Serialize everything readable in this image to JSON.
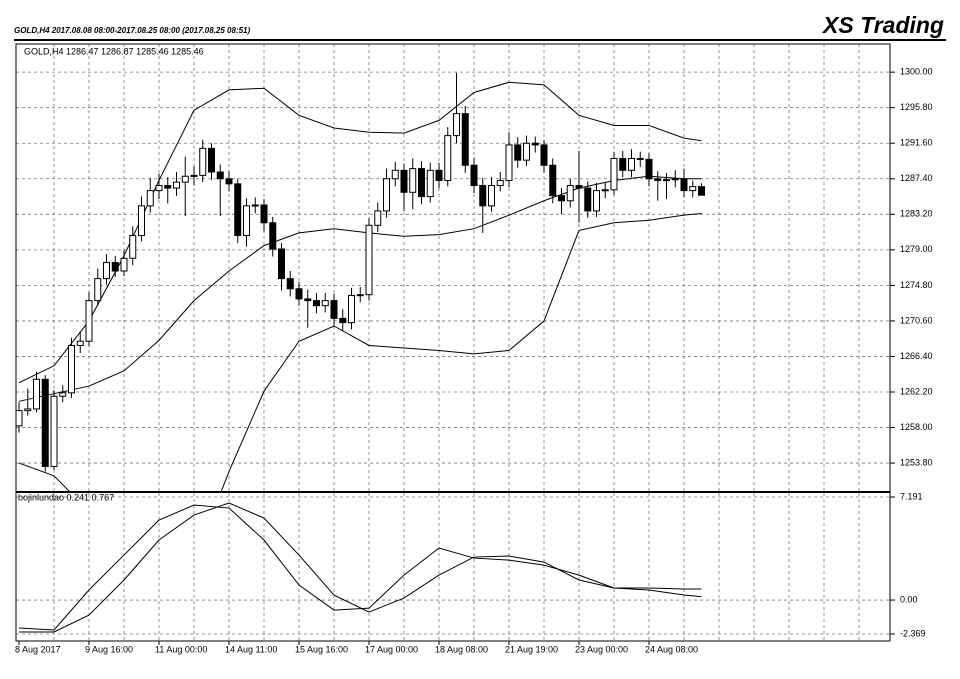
{
  "header": {
    "title": "GOLD,H4  2017.08.08 08:00-2017.08.25 08:00  (2017.08.25 08:51)",
    "brand": "XS Trading"
  },
  "chart_data": [
    {
      "type": "candlestick",
      "label": "GOLD,H4  1286.47 1286.87 1285.46 1285.46",
      "categories": [
        "8 Aug 2017",
        null,
        null,
        null,
        null,
        null,
        null,
        null,
        "9 Aug 16:00",
        null,
        null,
        null,
        null,
        null,
        null,
        null,
        "11 Aug 00:00",
        null,
        null,
        null,
        null,
        null,
        null,
        null,
        "14 Aug 11:00",
        null,
        null,
        null,
        null,
        null,
        null,
        null,
        "15 Aug 16:00",
        null,
        null,
        null,
        null,
        null,
        null,
        null,
        "17 Aug 00:00",
        null,
        null,
        null,
        null,
        null,
        null,
        null,
        "18 Aug 08:00",
        null,
        null,
        null,
        null,
        null,
        null,
        null,
        "21 Aug 19:00",
        null,
        null,
        null,
        null,
        null,
        null,
        null,
        "23 Aug 00:00",
        null,
        null,
        null,
        null,
        null,
        null,
        null,
        "24 Aug 08:00",
        null,
        null,
        null,
        null,
        null,
        null
      ],
      "open": [
        1258.2,
        1260.0,
        1260.2,
        1263.7,
        1253.4,
        1261.7,
        1262.1,
        1267.7,
        1268.2,
        1273.0,
        1275.6,
        1277.5,
        1276.5,
        1278.0,
        1280.7,
        1284.2,
        1286.0,
        1286.6,
        1286.3,
        1287.0,
        1287.7,
        1287.8,
        1291.0,
        1288.2,
        1287.4,
        1286.8,
        1280.7,
        1284.2,
        1284.3,
        1282.2,
        1279.1,
        1275.6,
        1274.4,
        1273.2,
        1273.0,
        1272.4,
        1273.0,
        1270.9,
        1270.4,
        1273.6,
        1273.7,
        1281.9,
        1283.6,
        1287.4,
        1288.4,
        1285.8,
        1288.6,
        1285.3,
        1288.4,
        1287.2,
        1292.5,
        1295.1,
        1289.0,
        1286.6,
        1284.2,
        1286.6,
        1287.2,
        1291.4,
        1289.6,
        1291.6,
        1291.4,
        1289.0,
        1285.4,
        1284.8,
        1286.6,
        1286.3,
        1283.6,
        1286.0,
        1286.1,
        1289.8,
        1288.4,
        1289.8,
        1289.7,
        1287.4,
        1287.2,
        1287.3,
        1287.4,
        1286.0,
        1286.47
      ],
      "high": [
        1261.0,
        1262.6,
        1264.6,
        1264.2,
        1262.4,
        1263.0,
        1268.6,
        1269.3,
        1274.0,
        1276.8,
        1278.5,
        1278.3,
        1279.0,
        1281.8,
        1285.3,
        1287.5,
        1288.0,
        1287.6,
        1288.2,
        1290.0,
        1288.9,
        1292.0,
        1291.6,
        1289.1,
        1288.3,
        1287.4,
        1285.1,
        1285.2,
        1285.0,
        1282.9,
        1279.8,
        1276.5,
        1275.2,
        1274.3,
        1273.9,
        1273.9,
        1273.8,
        1272.0,
        1274.5,
        1274.6,
        1282.8,
        1284.6,
        1288.6,
        1289.4,
        1289.2,
        1289.8,
        1289.5,
        1289.3,
        1289.3,
        1293.5,
        1299.9,
        1296.0,
        1289.9,
        1287.5,
        1287.6,
        1288.2,
        1292.9,
        1292.3,
        1292.5,
        1292.4,
        1292.0,
        1289.8,
        1286.3,
        1287.4,
        1290.7,
        1287.1,
        1286.9,
        1287.0,
        1290.6,
        1290.7,
        1290.9,
        1290.6,
        1290.4,
        1288.3,
        1288.1,
        1288.4,
        1288.6,
        1287.2,
        1286.87
      ],
      "low": [
        1257.4,
        1259.4,
        1259.8,
        1252.8,
        1253.0,
        1261.0,
        1261.5,
        1266.8,
        1267.6,
        1272.4,
        1274.9,
        1275.8,
        1275.9,
        1277.2,
        1280.0,
        1283.4,
        1285.0,
        1284.5,
        1285.4,
        1283.0,
        1286.6,
        1287.0,
        1287.3,
        1283.0,
        1285.9,
        1279.8,
        1279.4,
        1283.3,
        1281.2,
        1278.2,
        1274.2,
        1273.5,
        1272.4,
        1269.8,
        1271.5,
        1271.6,
        1270.0,
        1269.4,
        1269.6,
        1272.8,
        1273.0,
        1281.1,
        1282.8,
        1286.5,
        1283.6,
        1283.8,
        1284.4,
        1284.6,
        1286.3,
        1286.5,
        1291.6,
        1288.1,
        1285.7,
        1281.0,
        1283.5,
        1285.9,
        1286.4,
        1288.7,
        1288.9,
        1290.5,
        1288.1,
        1284.5,
        1283.2,
        1284.0,
        1282.2,
        1282.8,
        1282.9,
        1285.1,
        1285.5,
        1287.6,
        1287.6,
        1288.8,
        1286.5,
        1284.8,
        1285.0,
        1286.4,
        1285.2,
        1285.2,
        1285.46
      ],
      "close": [
        1260.0,
        1260.2,
        1263.7,
        1253.4,
        1261.7,
        1262.1,
        1267.7,
        1268.2,
        1273.0,
        1275.6,
        1277.5,
        1276.5,
        1278.0,
        1280.7,
        1284.2,
        1286.0,
        1286.6,
        1286.3,
        1287.0,
        1287.7,
        1287.8,
        1291.0,
        1288.2,
        1287.4,
        1286.8,
        1280.7,
        1284.2,
        1284.3,
        1282.2,
        1279.1,
        1275.6,
        1274.4,
        1273.2,
        1273.0,
        1272.4,
        1273.0,
        1270.9,
        1270.4,
        1273.6,
        1273.7,
        1281.9,
        1283.6,
        1287.4,
        1288.4,
        1285.8,
        1288.6,
        1285.3,
        1288.4,
        1287.2,
        1292.5,
        1295.1,
        1289.0,
        1286.6,
        1284.2,
        1286.6,
        1287.2,
        1291.4,
        1289.6,
        1291.6,
        1291.4,
        1289.0,
        1285.4,
        1284.8,
        1286.6,
        1286.3,
        1283.6,
        1286.0,
        1286.1,
        1289.8,
        1288.4,
        1289.8,
        1289.7,
        1287.4,
        1287.2,
        1287.3,
        1287.4,
        1286.0,
        1286.47,
        1285.46
      ],
      "up_color": "#ffffff",
      "down_color": "#000000",
      "overlays": [
        {
          "color": "#000000",
          "x": [
            0,
            4,
            8,
            12,
            16,
            20,
            24,
            28,
            32,
            36,
            40,
            44,
            48,
            52,
            56,
            60,
            64,
            68,
            72,
            76,
            78
          ],
          "values": [
            1263.3,
            1265.3,
            1270.6,
            1278.3,
            1287.2,
            1295.5,
            1297.9,
            1298.1,
            1294.9,
            1293.4,
            1292.9,
            1292.8,
            1294.3,
            1297.6,
            1298.8,
            1298.5,
            1294.9,
            1293.7,
            1293.7,
            1292.2,
            1291.9
          ]
        },
        {
          "color": "#000000",
          "x": [
            0,
            4,
            8,
            12,
            16,
            20,
            24,
            28,
            32,
            36,
            40,
            44,
            48,
            52,
            56,
            60,
            64,
            68,
            72,
            76,
            78
          ],
          "values": [
            1261.1,
            1262.0,
            1262.9,
            1264.7,
            1268.3,
            1273.0,
            1276.5,
            1279.5,
            1281.0,
            1281.5,
            1281.0,
            1280.6,
            1280.8,
            1281.5,
            1283.1,
            1284.8,
            1286.3,
            1287.2,
            1287.7,
            1287.4,
            1287.4
          ]
        },
        {
          "color": "#000000",
          "x": [
            0,
            4,
            8,
            12,
            16,
            20,
            24,
            28,
            32,
            36,
            40,
            44,
            48,
            52,
            56,
            60,
            64,
            68,
            72,
            76,
            78
          ],
          "values": [
            1253.8,
            1252.3,
            1248.1,
            1244.0,
            1239.8,
            1242.2,
            1252.8,
            1262.3,
            1268.2,
            1270.0,
            1267.7,
            1267.4,
            1267.1,
            1266.7,
            1267.1,
            1270.6,
            1281.3,
            1282.2,
            1282.5,
            1283.1,
            1283.3
          ]
        }
      ],
      "ylim": [
        1250.5,
        1301.2
      ],
      "yticks": [
        {
          "value": 1300.0,
          "label": "1300.00"
        },
        {
          "value": 1295.8,
          "label": "1295.80"
        },
        {
          "value": 1291.6,
          "label": "1291.60"
        },
        {
          "value": 1287.4,
          "label": "1287.40"
        },
        {
          "value": 1283.2,
          "label": "1283.20"
        },
        {
          "value": 1279.0,
          "label": "1279.00"
        },
        {
          "value": 1274.8,
          "label": "1274.80"
        },
        {
          "value": 1270.6,
          "label": "1270.60"
        },
        {
          "value": 1266.4,
          "label": "1266.40"
        },
        {
          "value": 1262.2,
          "label": "1262.20"
        },
        {
          "value": 1258.0,
          "label": "1258.00"
        },
        {
          "value": 1253.8,
          "label": "1253.80"
        }
      ],
      "grid": true
    },
    {
      "type": "line",
      "label": "bojinlundao 0.241 0.767",
      "series": [
        {
          "color": "#000000",
          "x": [
            0,
            4,
            8,
            12,
            16,
            20,
            24,
            28,
            32,
            36,
            40,
            44,
            48,
            52,
            56,
            60,
            64,
            68,
            72,
            76,
            78
          ],
          "values": [
            -1.95,
            -2.09,
            0.7,
            3.14,
            5.58,
            6.63,
            6.42,
            4.19,
            1.05,
            -0.7,
            -0.56,
            1.74,
            3.63,
            2.93,
            2.79,
            2.44,
            1.74,
            0.84,
            0.7,
            0.35,
            0.241
          ]
        },
        {
          "color": "#000000",
          "x": [
            0,
            4,
            8,
            12,
            16,
            20,
            24,
            28,
            32,
            36,
            40,
            44,
            48,
            52,
            56,
            60,
            64,
            68,
            72,
            76,
            78
          ],
          "values": [
            -2.23,
            -2.23,
            -1.05,
            1.4,
            4.19,
            5.93,
            6.77,
            5.72,
            3.14,
            0.35,
            -0.84,
            0.14,
            1.74,
            3.0,
            3.07,
            2.65,
            1.4,
            0.84,
            0.84,
            0.77,
            0.767
          ]
        }
      ],
      "ylim": [
        -2.369,
        7.191
      ],
      "yticks": [
        7.191,
        {
          "value": 0,
          "label": "0.00"
        },
        -2.369
      ],
      "grid": true
    }
  ]
}
